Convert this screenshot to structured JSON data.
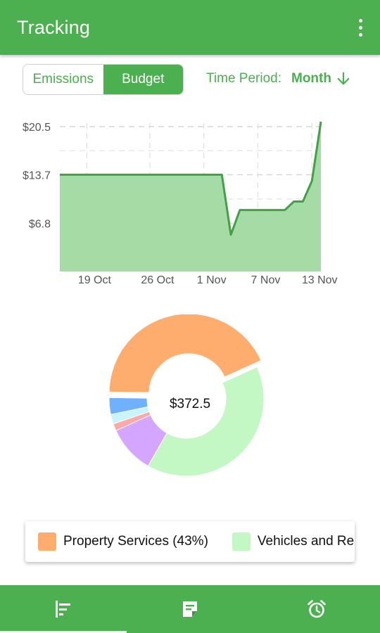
{
  "appbar": {
    "title": "Tracking",
    "menu_icon": "more-vert-icon"
  },
  "toggle": {
    "options": [
      "Emissions",
      "Budget"
    ],
    "selected": "Budget"
  },
  "time_period": {
    "label": "Time Period:",
    "value": "Month",
    "icon": "arrow-down-icon"
  },
  "chart_data": [
    {
      "type": "area",
      "x_ticks": [
        "19 Oct",
        "26 Oct",
        "1 Nov",
        "7 Nov",
        "13 Nov"
      ],
      "y_ticks": [
        "$20.5",
        "$13.7",
        "$6.8"
      ],
      "y_tick_values": [
        20.5,
        13.7,
        6.8
      ],
      "ylim": [
        0,
        21
      ],
      "x": [
        "16 Oct",
        "17 Oct",
        "18 Oct",
        "19 Oct",
        "20 Oct",
        "21 Oct",
        "22 Oct",
        "23 Oct",
        "24 Oct",
        "25 Oct",
        "26 Oct",
        "27 Oct",
        "28 Oct",
        "29 Oct",
        "30 Oct",
        "31 Oct",
        "1 Nov",
        "2 Nov",
        "3 Nov",
        "4 Nov",
        "5 Nov",
        "6 Nov",
        "7 Nov",
        "8 Nov",
        "9 Nov",
        "10 Nov",
        "11 Nov",
        "12 Nov",
        "13 Nov",
        "14 Nov"
      ],
      "values": [
        13.7,
        13.7,
        13.7,
        13.7,
        13.7,
        13.7,
        13.7,
        13.7,
        13.7,
        13.7,
        13.7,
        13.7,
        13.7,
        13.7,
        13.7,
        13.7,
        13.7,
        13.7,
        13.7,
        5.2,
        8.7,
        8.7,
        8.7,
        8.7,
        8.7,
        8.7,
        9.9,
        9.9,
        12.8,
        21.2
      ],
      "grid": true,
      "color": "#43a047",
      "fill": "#a5dca5"
    },
    {
      "type": "pie",
      "center_label": "$372.5",
      "slices": [
        {
          "name": "Property Services",
          "percent": 43,
          "color": "#ffad6f"
        },
        {
          "name": "Vehicles and Re",
          "percent": 40,
          "color": "#c3f7c3"
        },
        {
          "name": "",
          "percent": 10,
          "color": "#d4a6ff"
        },
        {
          "name": "",
          "percent": 1.5,
          "color": "#ffa8a8"
        },
        {
          "name": "",
          "percent": 2,
          "color": "#c8f4fb"
        },
        {
          "name": "",
          "percent": 3.5,
          "color": "#6fb1ff"
        }
      ]
    }
  ],
  "legend": {
    "items": [
      {
        "label": "Property Services (43%)",
        "color": "#ffad6f"
      },
      {
        "label": "Vehicles and Re",
        "color": "#c3f7c3"
      }
    ]
  },
  "bottom_nav": {
    "items": [
      {
        "icon": "chart-bars-icon",
        "selected": true
      },
      {
        "icon": "note-icon",
        "selected": false
      },
      {
        "icon": "alarm-clock-icon",
        "selected": false
      }
    ]
  }
}
